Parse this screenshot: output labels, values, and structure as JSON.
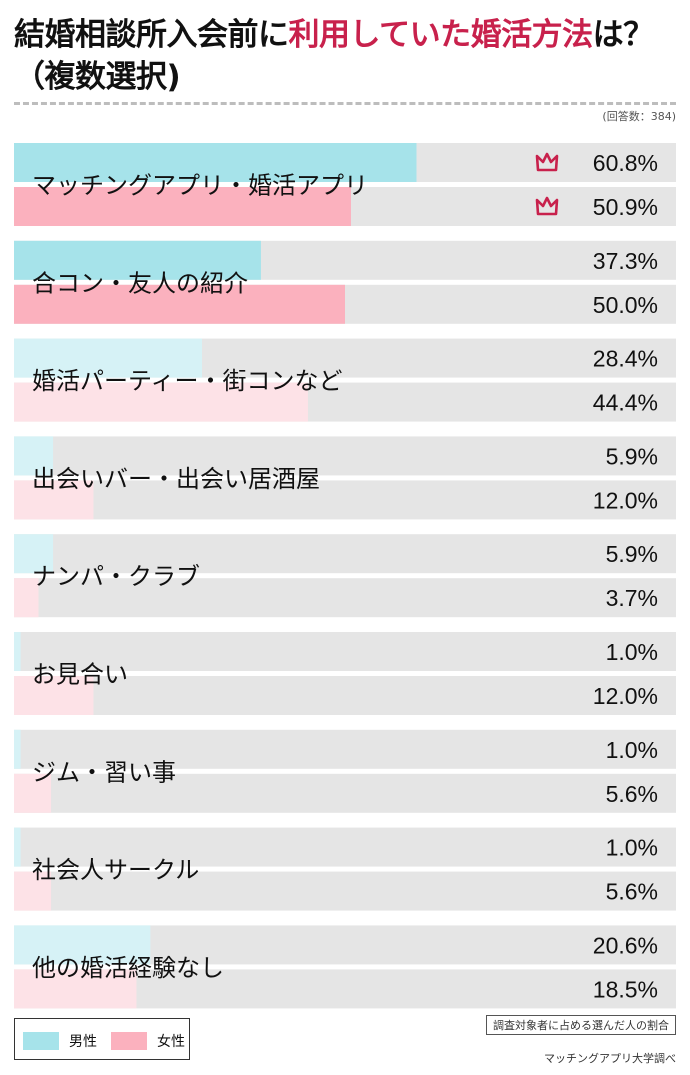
{
  "header": {
    "title_lead": "結婚相談所入会前に",
    "title_accent": "利用していた婚活方法",
    "title_tail": "は？",
    "title_line2": "（複数選択)",
    "respondents": "(回答数：384)"
  },
  "colors": {
    "male_strong": "#a6e3ea",
    "male_light": "#d6f2f6",
    "female_strong": "#fbb1be",
    "female_light": "#fde2e7",
    "track": "#e5e5e5",
    "accent": "#c8214c"
  },
  "chart_data": {
    "type": "bar",
    "orientation": "horizontal",
    "xlim": [
      0,
      100
    ],
    "unit": "%",
    "categories": [
      "マッチングアプリ・婚活アプリ",
      "合コン・友人の紹介",
      "婚活パーティー・街コンなど",
      "出会いバー・出会い居酒屋",
      "ナンパ・クラブ",
      "お見合い",
      "ジム・習い事",
      "社会人サークル",
      "他の婚活経験なし"
    ],
    "series": [
      {
        "name": "男性",
        "values": [
          60.8,
          37.3,
          28.4,
          5.9,
          5.9,
          1.0,
          1.0,
          1.0,
          20.6
        ],
        "labels": [
          "60.8%",
          "37.3%",
          "28.4%",
          "5.9%",
          "5.9%",
          "1.0%",
          "1.0%",
          "1.0%",
          "20.6%"
        ]
      },
      {
        "name": "女性",
        "values": [
          50.9,
          50.0,
          44.4,
          12.0,
          3.7,
          12.0,
          5.6,
          5.6,
          18.5
        ],
        "labels": [
          "50.9%",
          "50.0%",
          "44.4%",
          "12.0%",
          "3.7%",
          "12.0%",
          "5.6%",
          "5.6%",
          "18.5%"
        ]
      }
    ],
    "highlight": [
      true,
      false,
      false,
      false,
      false,
      false,
      false,
      false,
      false
    ],
    "legend_position": "bottom-left",
    "grid": false
  },
  "footnote": "調査対象者に占める選んだ人の割合",
  "credit": "マッチングアプリ大学調べ"
}
